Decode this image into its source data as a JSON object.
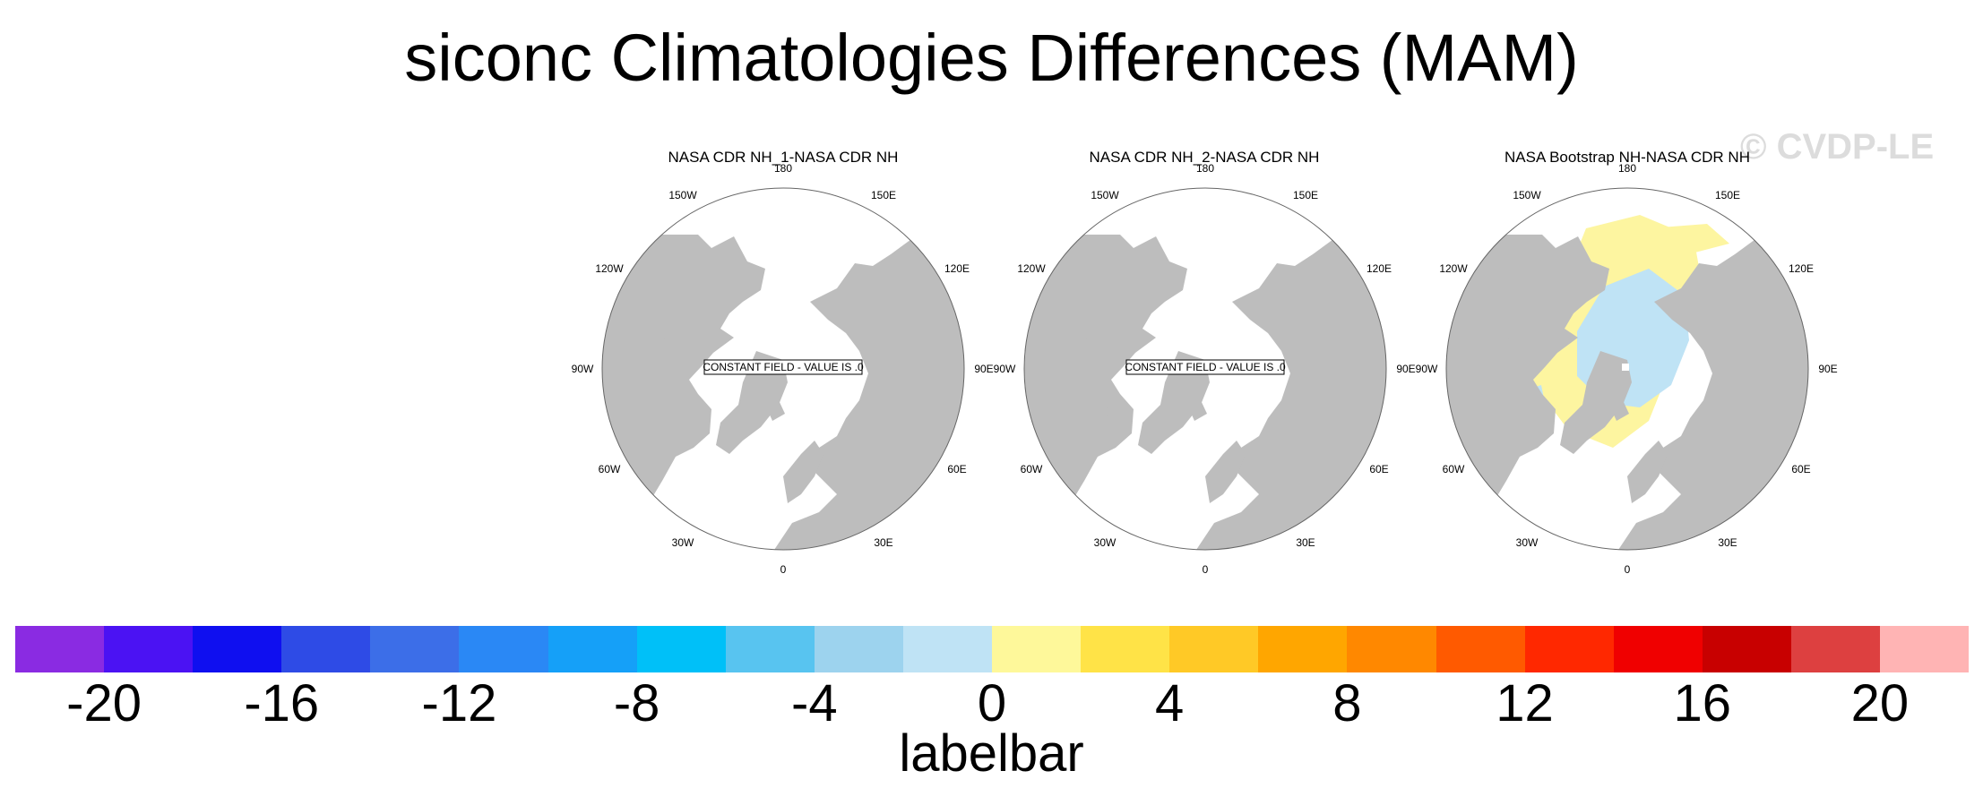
{
  "title": "siconc Climatologies Differences (MAM)",
  "watermark": "© CVDP-LE",
  "panels": [
    {
      "title": "NASA CDR NH_1-NASA CDR NH",
      "note": "CONSTANT FIELD - VALUE IS .0",
      "anomaly": false
    },
    {
      "title": "NASA CDR NH_2-NASA CDR NH",
      "note": "CONSTANT FIELD - VALUE IS .0",
      "anomaly": false
    },
    {
      "title": "NASA Bootstrap NH-NASA CDR NH",
      "note": "",
      "anomaly": true
    }
  ],
  "longitude_labels": [
    "180",
    "150E",
    "120E",
    "90E",
    "60E",
    "30E",
    "0",
    "30W",
    "60W",
    "90W",
    "120W",
    "150W"
  ],
  "colors": {
    "land": "#bdbdbd",
    "ocean": "#ffffff",
    "positive_anomaly": "#fdf5a0",
    "negative_anomaly": "#bfe3f5"
  },
  "labelbar": {
    "title": "labelbar",
    "colors": [
      "#8a2be2",
      "#4b12f3",
      "#0f0ff0",
      "#2e4be6",
      "#3c6ee8",
      "#2a88f5",
      "#15a0f8",
      "#00c0f8",
      "#58c4f0",
      "#9dd3ee",
      "#bfe3f5",
      "#fef89a",
      "#ffe347",
      "#ffc926",
      "#ffa600",
      "#ff8800",
      "#ff5a00",
      "#ff2800",
      "#f00000",
      "#c80000",
      "#dd4040",
      "#ffb4b4"
    ],
    "ticks": [
      "-20",
      "-16",
      "-12",
      "-8",
      "-4",
      "0",
      "4",
      "8",
      "12",
      "16",
      "20"
    ]
  }
}
